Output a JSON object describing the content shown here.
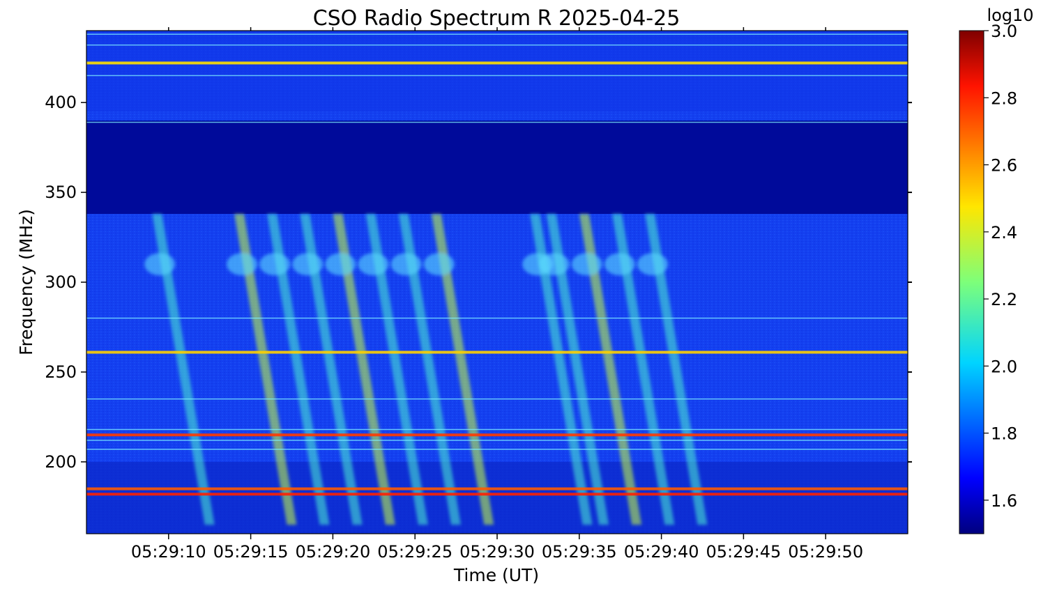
{
  "chart_data": {
    "type": "heatmap",
    "title": "CSO Radio Spectrum R 2025-04-25",
    "xlabel": "Time (UT)",
    "ylabel": "Frequency (MHz)",
    "x_time_range": [
      "05:29:05",
      "05:29:55"
    ],
    "x_ticks": [
      "05:29:10",
      "05:29:15",
      "05:29:20",
      "05:29:25",
      "05:29:30",
      "05:29:35",
      "05:29:40",
      "05:29:45",
      "05:29:50"
    ],
    "y_range_mhz": [
      160,
      440
    ],
    "y_ticks": [
      200,
      250,
      300,
      350,
      400
    ],
    "colorbar": {
      "label": "log10",
      "range": [
        1.5,
        3.0
      ],
      "ticks": [
        "1.6",
        "1.8",
        "2.0",
        "2.2",
        "2.4",
        "2.6",
        "2.8",
        "3.0"
      ],
      "colormap": "jet"
    },
    "features": {
      "quiet_band_mhz": [
        338,
        390
      ],
      "interference_lines_mhz": [
        438,
        432,
        422,
        415,
        389,
        280,
        261,
        235,
        218,
        215,
        212,
        207,
        185,
        182
      ],
      "type_iii_bursts_start_times": [
        "05:29:09",
        "05:29:14",
        "05:29:16",
        "05:29:18",
        "05:29:20",
        "05:29:22",
        "05:29:24",
        "05:29:26",
        "05:29:32",
        "05:29:33",
        "05:29:35",
        "05:29:37",
        "05:29:39"
      ]
    }
  }
}
